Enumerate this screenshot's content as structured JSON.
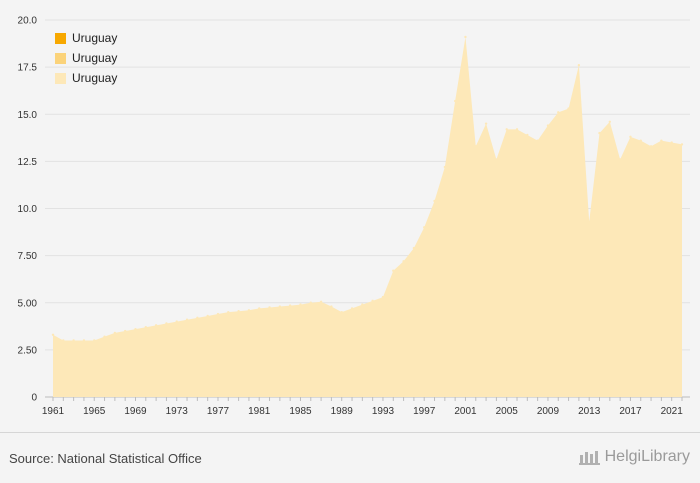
{
  "chart_data": {
    "type": "area",
    "title": "",
    "xlabel": "",
    "ylabel": "",
    "ylim": [
      0,
      20
    ],
    "xlim": [
      1961,
      2022
    ],
    "y_ticks": [
      "0",
      "2.50",
      "5.00",
      "7.50",
      "10.0",
      "12.5",
      "15.0",
      "17.5",
      "20.0"
    ],
    "x_ticks": [
      "1961",
      "1965",
      "1969",
      "1973",
      "1977",
      "1981",
      "1985",
      "1989",
      "1993",
      "1997",
      "2001",
      "2005",
      "2009",
      "2013",
      "2017",
      "2021"
    ],
    "grid": "horizontal",
    "legend_position": "top-left",
    "legend": [
      {
        "label": "Uruguay",
        "color": "#f7a800"
      },
      {
        "label": "Uruguay",
        "color": "#fbd37a"
      },
      {
        "label": "Uruguay",
        "color": "#fde8b8"
      }
    ],
    "area_color": "#fde8b8",
    "series": [
      {
        "name": "Uruguay",
        "x": [
          1961,
          1962,
          1963,
          1964,
          1965,
          1966,
          1967,
          1968,
          1969,
          1970,
          1971,
          1972,
          1973,
          1974,
          1975,
          1976,
          1977,
          1978,
          1979,
          1980,
          1981,
          1982,
          1983,
          1984,
          1985,
          1986,
          1987,
          1988,
          1989,
          1990,
          1991,
          1992,
          1993,
          1994,
          1995,
          1996,
          1997,
          1998,
          1999,
          2000,
          2001,
          2002,
          2003,
          2004,
          2005,
          2006,
          2007,
          2008,
          2009,
          2010,
          2011,
          2012,
          2013,
          2014,
          2015,
          2016,
          2017,
          2018,
          2019,
          2020,
          2021,
          2022
        ],
        "values": [
          3.3,
          3.0,
          3.0,
          3.0,
          3.0,
          3.2,
          3.4,
          3.5,
          3.6,
          3.7,
          3.8,
          3.9,
          4.0,
          4.1,
          4.2,
          4.3,
          4.4,
          4.5,
          4.55,
          4.6,
          4.7,
          4.75,
          4.8,
          4.85,
          4.9,
          5.0,
          5.05,
          4.8,
          4.5,
          4.7,
          4.9,
          5.1,
          5.3,
          6.7,
          7.2,
          7.9,
          9.0,
          10.4,
          12.2,
          15.7,
          19.1,
          13.3,
          14.5,
          12.6,
          14.2,
          14.2,
          13.9,
          13.6,
          14.4,
          15.1,
          15.3,
          17.6,
          9.3,
          14.0,
          14.6,
          12.6,
          13.8,
          13.6,
          13.3,
          13.6,
          13.5,
          13.4
        ]
      }
    ]
  },
  "footer": {
    "source": "Source: National Statistical Office",
    "brand": "HelgiLibrary"
  }
}
